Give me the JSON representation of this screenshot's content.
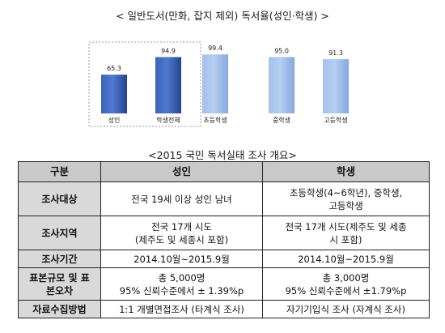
{
  "chart_data": {
    "type": "bar",
    "title": "< 일반도서(만화, 잡지 제외) 독서율(성인·학생) >",
    "categories": [
      "성인",
      "학생전체",
      "초등학생",
      "중학생",
      "고등학생"
    ],
    "values": [
      65.3,
      94.9,
      99.4,
      95.0,
      91.3
    ],
    "value_labels": [
      "65.3",
      "94.9",
      "99.4",
      "95.0",
      "91.3"
    ],
    "ylim": [
      0,
      100
    ],
    "grid": false,
    "highlighted_categories": [
      "성인",
      "학생전체"
    ],
    "colors": {
      "highlight": "#2e55a8",
      "highlight_top": "#5b86d6",
      "normal": "#94b4e4",
      "normal_top": "#c2d6f3",
      "box_border": "#9a9a9a"
    }
  },
  "table": {
    "title": "<2015 국민 독서실태 조사 개요>",
    "headers": [
      "구분",
      "성인",
      "학생"
    ],
    "rows": [
      {
        "label": "조사대상",
        "adult": "전국 19세 이상 성인 남녀",
        "student": "초등학생(4~6학년), 중학생,\n고등학생"
      },
      {
        "label": "조사지역",
        "adult": "전국 17개 시도\n(제주도 및 세종시 포함)",
        "student": "전국 17개 시도(제주도 및 세종\n시 포함)"
      },
      {
        "label": "조사기간",
        "adult": "2014.10월~2015.9월",
        "student": "2014.10월~2015.9월"
      },
      {
        "label": "표본규모 및 표\n본오차",
        "adult": "총 5,000명\n95% 신뢰수준에서 ± 1.39%p",
        "student": "총 3,000명\n95% 신뢰수준에서 ±1.79%p"
      },
      {
        "label": "자료수집방법",
        "adult": "1:1 개별면접조사 (타계식 조사)",
        "student": "자기기입식 조사 (자계식 조사)"
      }
    ]
  }
}
